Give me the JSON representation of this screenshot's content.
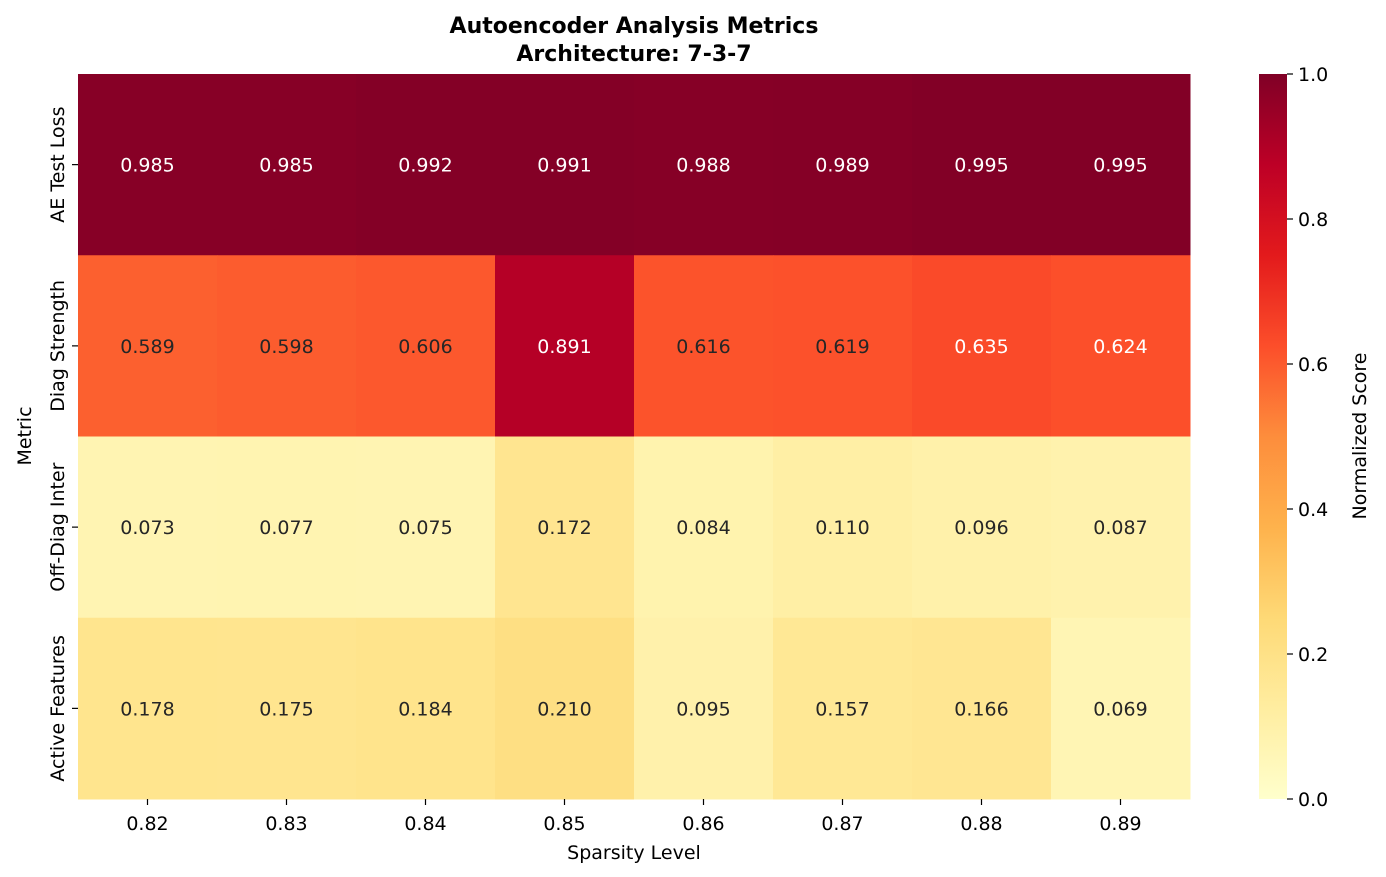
{
  "chart_data": {
    "type": "heatmap",
    "title_lines": [
      "Autoencoder Analysis Metrics",
      "Architecture: 7-3-7"
    ],
    "xlabel": "Sparsity Level",
    "ylabel": "Metric",
    "x_categories": [
      "0.82",
      "0.83",
      "0.84",
      "0.85",
      "0.86",
      "0.87",
      "0.88",
      "0.89"
    ],
    "y_categories": [
      "AE Test Loss",
      "Diag Strength",
      "Off-Diag Inter",
      "Active Features"
    ],
    "values": [
      [
        0.985,
        0.985,
        0.992,
        0.991,
        0.988,
        0.989,
        0.995,
        0.995
      ],
      [
        0.589,
        0.598,
        0.606,
        0.891,
        0.616,
        0.619,
        0.635,
        0.624
      ],
      [
        0.073,
        0.077,
        0.075,
        0.172,
        0.084,
        0.11,
        0.096,
        0.087
      ],
      [
        0.178,
        0.175,
        0.184,
        0.21,
        0.095,
        0.157,
        0.166,
        0.069
      ]
    ],
    "value_format": "0.000",
    "colormap": "YlOrRd",
    "colorbar": {
      "label": "Normalized Score",
      "range": [
        0.0,
        1.0
      ],
      "ticks": [
        "0.0",
        "0.2",
        "0.4",
        "0.6",
        "0.8",
        "1.0"
      ]
    }
  }
}
